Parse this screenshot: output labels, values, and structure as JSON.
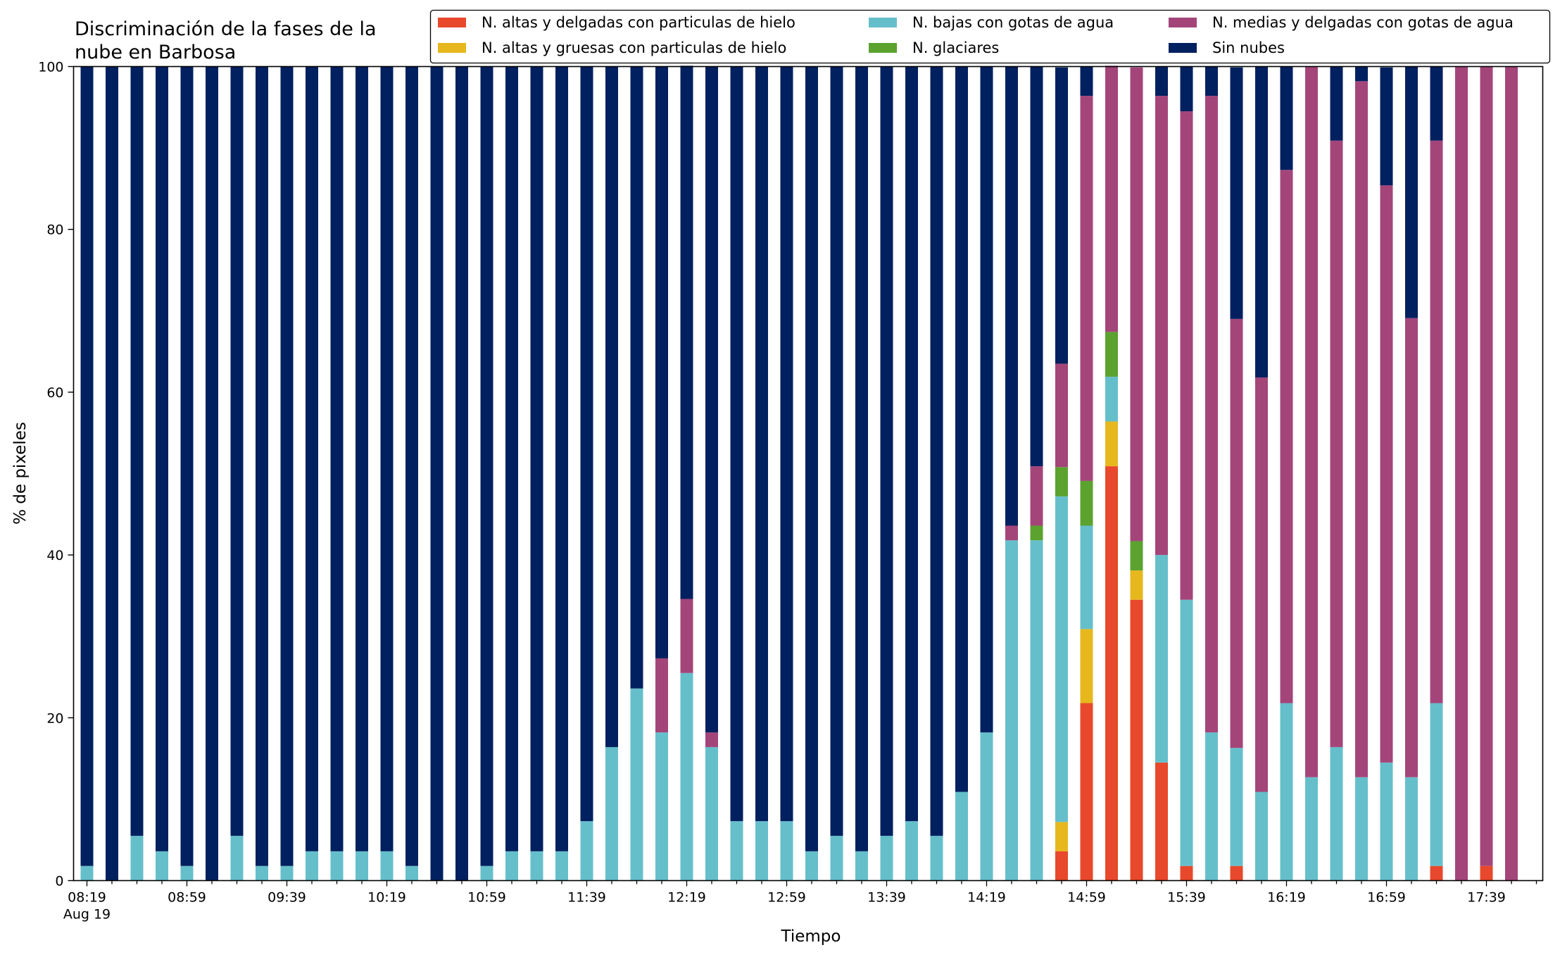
{
  "chart_data": {
    "type": "bar",
    "stacked": true,
    "title": "Discriminación de la fases de la\nnube en Barbosa",
    "xlabel": "Tiempo",
    "ylabel": "% de pixeles",
    "ylim": [
      0,
      100
    ],
    "yticks": [
      0,
      20,
      40,
      60,
      80,
      100
    ],
    "grid": false,
    "legend_position": "top-right",
    "categories": [
      "08:19",
      "08:29",
      "08:39",
      "08:49",
      "08:59",
      "09:09",
      "09:19",
      "09:29",
      "09:39",
      "09:49",
      "09:59",
      "10:09",
      "10:19",
      "10:29",
      "10:39",
      "10:49",
      "10:59",
      "11:09",
      "11:19",
      "11:29",
      "11:39",
      "11:49",
      "11:59",
      "12:09",
      "12:19",
      "12:29",
      "12:39",
      "12:49",
      "12:59",
      "13:09",
      "13:19",
      "13:29",
      "13:39",
      "13:49",
      "13:59",
      "14:09",
      "14:19",
      "14:29",
      "14:39",
      "14:49",
      "14:59",
      "15:09",
      "15:19",
      "15:29",
      "15:39",
      "15:49",
      "15:59",
      "16:09",
      "16:19",
      "16:29",
      "16:39",
      "16:49",
      "16:59",
      "17:09",
      "17:19",
      "17:29",
      "17:39",
      "17:49"
    ],
    "tick_labels": [
      {
        "label": "08:19",
        "sublabel": "Aug 19"
      },
      {
        "label": "08:59",
        "sublabel": ""
      },
      {
        "label": "09:39",
        "sublabel": ""
      },
      {
        "label": "10:19",
        "sublabel": ""
      },
      {
        "label": "10:59",
        "sublabel": ""
      },
      {
        "label": "11:39",
        "sublabel": ""
      },
      {
        "label": "12:19",
        "sublabel": ""
      },
      {
        "label": "12:59",
        "sublabel": ""
      },
      {
        "label": "13:39",
        "sublabel": ""
      },
      {
        "label": "14:19",
        "sublabel": ""
      },
      {
        "label": "14:59",
        "sublabel": ""
      },
      {
        "label": "15:39",
        "sublabel": ""
      },
      {
        "label": "16:19",
        "sublabel": ""
      },
      {
        "label": "16:59",
        "sublabel": ""
      },
      {
        "label": "17:39",
        "sublabel": ""
      }
    ],
    "series": [
      {
        "name": "N. altas y delgadas con particulas de hielo",
        "color": "#e8482b",
        "values": [
          0,
          0,
          0,
          0,
          0,
          0,
          0,
          0,
          0,
          0,
          0,
          0,
          0,
          0,
          0,
          0,
          0,
          0,
          0,
          0,
          0,
          0,
          0,
          0,
          0,
          0,
          0,
          0,
          0,
          0,
          0,
          0,
          0,
          0,
          0,
          0,
          0,
          0,
          0,
          3.6,
          21.8,
          50.9,
          34.5,
          14.5,
          1.8,
          0,
          1.8,
          0,
          0,
          0,
          0,
          0,
          0,
          0,
          1.8,
          0,
          1.8,
          0
        ]
      },
      {
        "name": "N. altas y gruesas con particulas de hielo",
        "color": "#e6b81e",
        "values": [
          0,
          0,
          0,
          0,
          0,
          0,
          0,
          0,
          0,
          0,
          0,
          0,
          0,
          0,
          0,
          0,
          0,
          0,
          0,
          0,
          0,
          0,
          0,
          0,
          0,
          0,
          0,
          0,
          0,
          0,
          0,
          0,
          0,
          0,
          0,
          0,
          0,
          0,
          0,
          3.6,
          9.1,
          5.5,
          3.6,
          0,
          0,
          0,
          0,
          0,
          0,
          0,
          0,
          0,
          0,
          0,
          0,
          0,
          0,
          0
        ]
      },
      {
        "name": "N. bajas con gotas de agua",
        "color": "#65bfcb",
        "values": [
          1.8,
          0,
          5.5,
          3.6,
          1.8,
          0,
          5.5,
          1.8,
          1.8,
          3.6,
          3.6,
          3.6,
          3.6,
          1.8,
          0,
          0,
          1.8,
          3.6,
          3.6,
          3.6,
          7.3,
          16.4,
          23.6,
          18.2,
          25.5,
          16.4,
          7.3,
          7.3,
          7.3,
          3.6,
          5.5,
          3.6,
          5.5,
          7.3,
          5.5,
          10.9,
          18.2,
          41.8,
          41.8,
          40.0,
          12.7,
          5.5,
          0,
          25.5,
          32.7,
          18.2,
          14.5,
          10.9,
          21.8,
          12.7,
          16.4,
          12.7,
          14.5,
          12.7,
          20.0,
          0,
          0,
          0
        ]
      },
      {
        "name": "N. glaciares",
        "color": "#5ba22f",
        "values": [
          0,
          0,
          0,
          0,
          0,
          0,
          0,
          0,
          0,
          0,
          0,
          0,
          0,
          0,
          0,
          0,
          0,
          0,
          0,
          0,
          0,
          0,
          0,
          0,
          0,
          0,
          0,
          0,
          0,
          0,
          0,
          0,
          0,
          0,
          0,
          0,
          0,
          0,
          1.8,
          3.6,
          5.5,
          5.5,
          3.6,
          0,
          0,
          0,
          0,
          0,
          0,
          0,
          0,
          0,
          0,
          0,
          0,
          0,
          0,
          0
        ]
      },
      {
        "name": "N. medias y delgadas con gotas de agua",
        "color": "#a4457a",
        "values": [
          0,
          0,
          0,
          0,
          0,
          0,
          0,
          0,
          0,
          0,
          0,
          0,
          0,
          0,
          0,
          0,
          0,
          0,
          0,
          0,
          0,
          0,
          0,
          9.1,
          9.1,
          1.8,
          0,
          0,
          0,
          0,
          0,
          0,
          0,
          0,
          0,
          0,
          0,
          1.8,
          7.3,
          12.7,
          47.3,
          32.7,
          58.2,
          56.4,
          60.0,
          78.2,
          52.7,
          50.9,
          65.5,
          87.3,
          74.5,
          85.5,
          70.9,
          56.4,
          69.1,
          100,
          98.2,
          100
        ]
      },
      {
        "name": "Sin nubes",
        "color": "#01205f",
        "values": [
          98.2,
          100,
          94.5,
          96.4,
          98.2,
          100,
          94.5,
          98.2,
          98.2,
          96.4,
          96.4,
          96.4,
          96.4,
          98.2,
          100,
          100,
          98.2,
          96.4,
          96.4,
          96.4,
          92.7,
          83.6,
          76.4,
          72.7,
          65.5,
          81.8,
          92.7,
          92.7,
          92.7,
          96.4,
          94.5,
          96.4,
          94.5,
          92.7,
          94.5,
          89.1,
          81.8,
          56.4,
          49.1,
          36.4,
          3.6,
          0,
          0,
          3.6,
          5.5,
          3.6,
          30.9,
          38.2,
          12.7,
          0,
          9.1,
          1.8,
          14.5,
          30.9,
          9.1,
          0,
          0,
          0
        ]
      }
    ]
  }
}
